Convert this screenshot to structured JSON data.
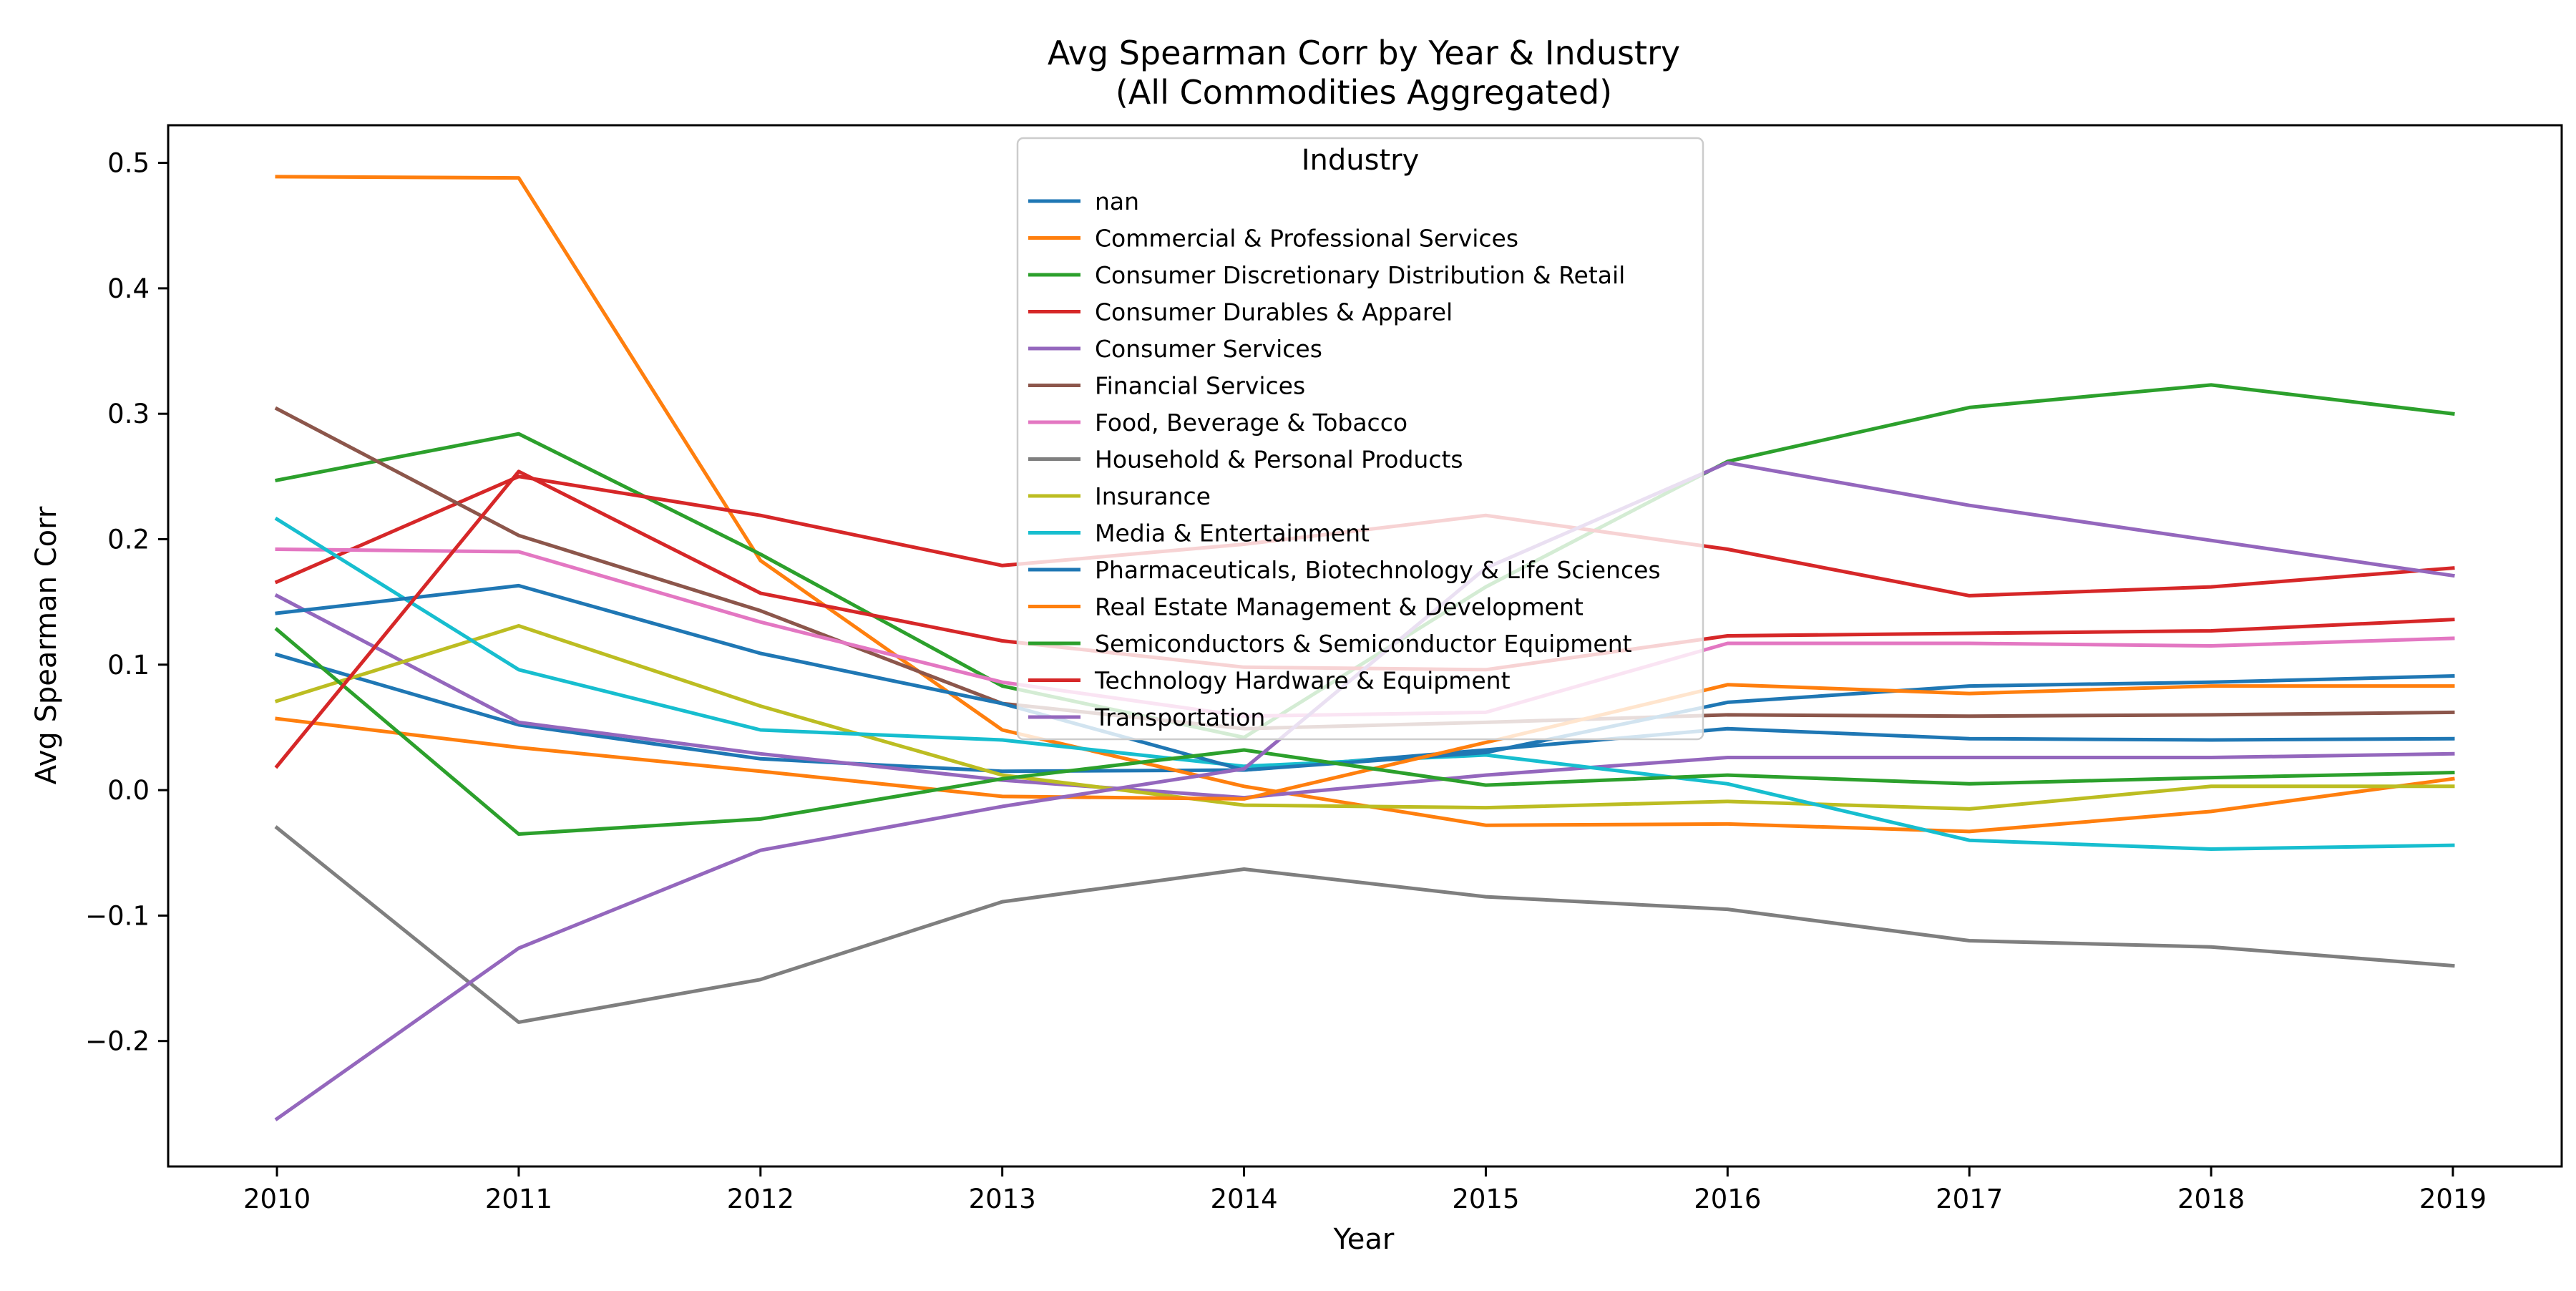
{
  "chart_data": {
    "type": "line",
    "title": "Avg Spearman Corr by Year & Industry",
    "subtitle": "(All Commodities Aggregated)",
    "xlabel": "Year",
    "ylabel": "Avg Spearman Corr",
    "x": [
      2010,
      2011,
      2012,
      2013,
      2014,
      2015,
      2016,
      2017,
      2018,
      2019
    ],
    "xlim": [
      2009.55,
      2019.45
    ],
    "ylim": [
      -0.3,
      0.53
    ],
    "yticks": [
      -0.2,
      -0.1,
      0.0,
      0.1,
      0.2,
      0.3,
      0.4,
      0.5
    ],
    "ytick_labels": [
      "−0.2",
      "−0.1",
      "0.0",
      "0.1",
      "0.2",
      "0.3",
      "0.4",
      "0.5"
    ],
    "grid": false,
    "legend": {
      "title": "Industry",
      "placement": "upper-center"
    },
    "series": [
      {
        "name": "nan",
        "color": "#1f77b4",
        "values": [
          0.108,
          0.052,
          0.025,
          0.015,
          0.016,
          0.032,
          0.049,
          0.041,
          0.04,
          0.041
        ]
      },
      {
        "name": "Commercial & Professional Services",
        "color": "#ff7f0e",
        "values": [
          0.489,
          0.488,
          0.183,
          0.048,
          0.003,
          -0.028,
          -0.027,
          -0.033,
          -0.017,
          0.009
        ]
      },
      {
        "name": "Consumer Discretionary Distribution & Retail",
        "color": "#2ca02c",
        "values": [
          0.247,
          0.284,
          0.188,
          0.083,
          0.042,
          0.162,
          0.262,
          0.305,
          0.323,
          0.3
        ]
      },
      {
        "name": "Consumer Durables & Apparel",
        "color": "#d62728",
        "values": [
          0.166,
          0.25,
          0.219,
          0.179,
          0.196,
          0.219,
          0.192,
          0.155,
          0.162,
          0.177
        ]
      },
      {
        "name": "Consumer Services",
        "color": "#9467bd",
        "values": [
          0.155,
          0.054,
          0.029,
          0.008,
          -0.006,
          0.012,
          0.026,
          0.026,
          0.026,
          0.029
        ]
      },
      {
        "name": "Financial Services",
        "color": "#8c564b",
        "values": [
          0.304,
          0.203,
          0.143,
          0.069,
          0.049,
          0.054,
          0.06,
          0.059,
          0.06,
          0.062
        ]
      },
      {
        "name": "Food, Beverage & Tobacco",
        "color": "#e377c2",
        "values": [
          0.192,
          0.19,
          0.134,
          0.086,
          0.059,
          0.062,
          0.117,
          0.117,
          0.115,
          0.121
        ]
      },
      {
        "name": "Household & Personal Products",
        "color": "#7f7f7f",
        "values": [
          -0.03,
          -0.185,
          -0.151,
          -0.089,
          -0.063,
          -0.085,
          -0.095,
          -0.12,
          -0.125,
          -0.14
        ]
      },
      {
        "name": "Insurance",
        "color": "#bcbd22",
        "values": [
          0.071,
          0.131,
          0.067,
          0.012,
          -0.012,
          -0.014,
          -0.009,
          -0.015,
          0.003,
          0.003
        ]
      },
      {
        "name": "Media & Entertainment",
        "color": "#17becf",
        "values": [
          0.216,
          0.096,
          0.048,
          0.04,
          0.019,
          0.028,
          0.005,
          -0.04,
          -0.047,
          -0.044
        ]
      },
      {
        "name": "Pharmaceuticals, Biotechnology & Life Sciences",
        "color": "#1f77b4",
        "values": [
          0.141,
          0.163,
          0.109,
          0.069,
          0.016,
          0.03,
          0.07,
          0.083,
          0.086,
          0.091
        ]
      },
      {
        "name": "Real Estate Management & Development",
        "color": "#ff7f0e",
        "values": [
          0.057,
          0.034,
          0.015,
          -0.005,
          -0.007,
          0.038,
          0.084,
          0.077,
          0.083,
          0.083
        ]
      },
      {
        "name": "Semiconductors & Semiconductor Equipment",
        "color": "#2ca02c",
        "values": [
          0.128,
          -0.035,
          -0.023,
          0.009,
          0.032,
          0.004,
          0.012,
          0.005,
          0.01,
          0.014
        ]
      },
      {
        "name": "Technology Hardware & Equipment",
        "color": "#d62728",
        "values": [
          0.019,
          0.254,
          0.157,
          0.119,
          0.098,
          0.096,
          0.123,
          0.125,
          0.127,
          0.136
        ]
      },
      {
        "name": "Transportation",
        "color": "#9467bd",
        "values": [
          -0.262,
          -0.126,
          -0.048,
          -0.013,
          0.017,
          0.177,
          0.261,
          0.227,
          0.199,
          0.171
        ]
      }
    ]
  }
}
